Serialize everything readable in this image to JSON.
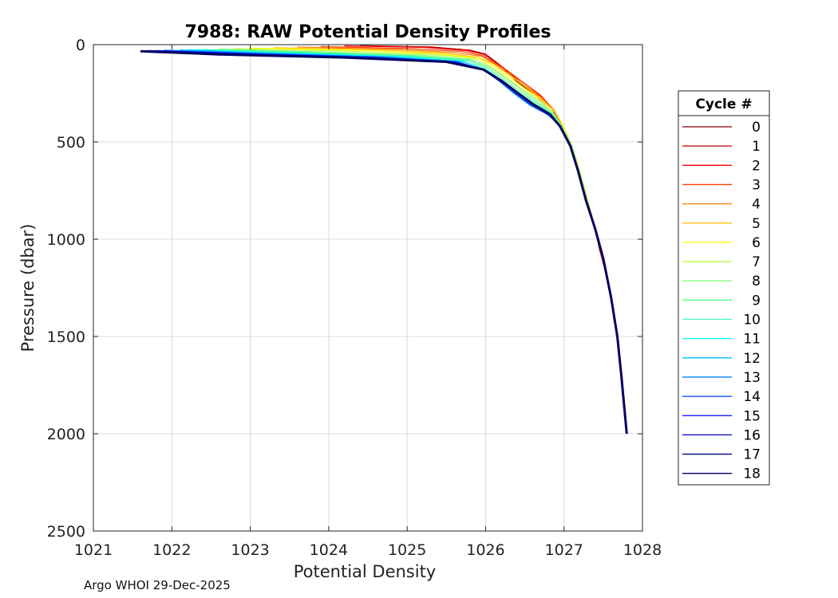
{
  "chart_data": {
    "type": "line",
    "title": "7988: RAW Potential Density Profiles",
    "xlabel": "Potential Density",
    "ylabel": "Pressure (dbar)",
    "xlim": [
      1021,
      1028
    ],
    "ylim": [
      0,
      2500
    ],
    "y_reversed": true,
    "xticks": [
      "1021",
      "1022",
      "1023",
      "1024",
      "1025",
      "1026",
      "1027",
      "1028"
    ],
    "yticks": [
      "0",
      "500",
      "1000",
      "1500",
      "2000",
      "2500"
    ],
    "grid": true,
    "legend": {
      "title": "Cycle #",
      "placement": "right"
    },
    "series": [
      {
        "name": "0",
        "color": "#800000",
        "x": [
          1024.4,
          1025.3,
          1025.7,
          1025.95,
          1026.1,
          1026.25,
          1026.4,
          1026.6,
          1026.85,
          1026.95,
          1027.1,
          1027.2,
          1027.3,
          1027.4,
          1027.5,
          1027.6,
          1027.68,
          1027.73,
          1027.8
        ],
        "y": [
          5,
          12,
          25,
          45,
          80,
          130,
          190,
          250,
          330,
          400,
          520,
          650,
          800,
          950,
          1100,
          1300,
          1500,
          1700,
          2000
        ]
      },
      {
        "name": "1",
        "color": "#c00000",
        "x": [
          1024.6,
          1025.4,
          1025.8,
          1026.0,
          1026.12,
          1026.28,
          1026.45,
          1026.62,
          1026.85,
          1026.98,
          1027.1,
          1027.2,
          1027.3,
          1027.4,
          1027.5,
          1027.6,
          1027.68,
          1027.73,
          1027.8
        ],
        "y": [
          8,
          15,
          28,
          48,
          85,
          135,
          195,
          255,
          335,
          410,
          520,
          650,
          800,
          950,
          1100,
          1300,
          1500,
          1700,
          2000
        ]
      },
      {
        "name": "2",
        "color": "#ff0000",
        "x": [
          1024.2,
          1025.2,
          1025.75,
          1025.98,
          1026.1,
          1026.3,
          1026.5,
          1026.7,
          1026.88,
          1026.98,
          1027.1,
          1027.2,
          1027.3,
          1027.4,
          1027.45,
          1027.55,
          1027.66,
          1027.73,
          1027.8
        ],
        "y": [
          6,
          14,
          30,
          50,
          85,
          140,
          200,
          260,
          340,
          410,
          520,
          650,
          800,
          950,
          1050,
          1200,
          1450,
          1700,
          2000
        ]
      },
      {
        "name": "3",
        "color": "#ff4000",
        "x": [
          1023.9,
          1025.0,
          1025.7,
          1025.95,
          1026.1,
          1026.3,
          1026.5,
          1026.7,
          1026.88,
          1026.98,
          1027.1,
          1027.2,
          1027.3,
          1027.4,
          1027.45,
          1027.55,
          1027.66,
          1027.73,
          1027.8
        ],
        "y": [
          10,
          20,
          35,
          55,
          90,
          140,
          200,
          265,
          340,
          410,
          520,
          650,
          800,
          950,
          1050,
          1200,
          1450,
          1700,
          2000
        ]
      },
      {
        "name": "4",
        "color": "#ff8000",
        "x": [
          1023.6,
          1024.9,
          1025.6,
          1025.95,
          1026.1,
          1026.3,
          1026.5,
          1026.7,
          1026.88,
          1026.98,
          1027.1,
          1027.2,
          1027.3,
          1027.4,
          1027.5,
          1027.6,
          1027.68,
          1027.73,
          1027.8
        ],
        "y": [
          12,
          25,
          40,
          60,
          95,
          150,
          210,
          270,
          340,
          410,
          520,
          650,
          800,
          950,
          1100,
          1300,
          1500,
          1700,
          2000
        ]
      },
      {
        "name": "5",
        "color": "#ffbf00",
        "x": [
          1023.3,
          1024.7,
          1025.5,
          1025.9,
          1026.1,
          1026.3,
          1026.5,
          1026.7,
          1026.88,
          1026.98,
          1027.1,
          1027.2,
          1027.3,
          1027.4,
          1027.5,
          1027.6,
          1027.68,
          1027.73,
          1027.8
        ],
        "y": [
          15,
          28,
          45,
          65,
          100,
          155,
          215,
          275,
          345,
          410,
          520,
          650,
          800,
          950,
          1100,
          1300,
          1500,
          1700,
          2000
        ]
      },
      {
        "name": "6",
        "color": "#ffff00",
        "x": [
          1023.0,
          1024.5,
          1025.4,
          1025.9,
          1026.08,
          1026.28,
          1026.48,
          1026.7,
          1026.88,
          1026.98,
          1027.1,
          1027.2,
          1027.3,
          1027.4,
          1027.5,
          1027.6,
          1027.68,
          1027.73,
          1027.8
        ],
        "y": [
          18,
          30,
          48,
          68,
          105,
          160,
          220,
          280,
          345,
          410,
          520,
          650,
          800,
          950,
          1100,
          1300,
          1500,
          1700,
          2000
        ]
      },
      {
        "name": "7",
        "color": "#bfff40",
        "x": [
          1022.8,
          1024.3,
          1025.3,
          1025.85,
          1026.05,
          1026.25,
          1026.45,
          1026.68,
          1026.86,
          1026.97,
          1027.1,
          1027.2,
          1027.3,
          1027.4,
          1027.5,
          1027.6,
          1027.68,
          1027.73,
          1027.8
        ],
        "y": [
          20,
          35,
          50,
          70,
          110,
          165,
          225,
          285,
          350,
          415,
          520,
          650,
          800,
          950,
          1100,
          1300,
          1500,
          1700,
          2000
        ]
      },
      {
        "name": "8",
        "color": "#80ff80",
        "x": [
          1022.6,
          1024.0,
          1025.2,
          1025.8,
          1026.05,
          1026.25,
          1026.45,
          1026.66,
          1026.86,
          1026.97,
          1027.1,
          1027.18,
          1027.28,
          1027.4,
          1027.5,
          1027.6,
          1027.68,
          1027.73,
          1027.8
        ],
        "y": [
          22,
          38,
          55,
          75,
          115,
          170,
          230,
          290,
          350,
          415,
          520,
          650,
          800,
          950,
          1100,
          1300,
          1500,
          1700,
          2000
        ]
      },
      {
        "name": "9",
        "color": "#40ff80",
        "x": [
          1022.4,
          1023.8,
          1025.1,
          1025.8,
          1026.02,
          1026.22,
          1026.42,
          1026.64,
          1026.85,
          1026.96,
          1027.08,
          1027.18,
          1027.28,
          1027.4,
          1027.5,
          1027.6,
          1027.68,
          1027.73,
          1027.8
        ],
        "y": [
          25,
          40,
          58,
          80,
          120,
          175,
          235,
          295,
          355,
          420,
          520,
          650,
          800,
          950,
          1100,
          1300,
          1500,
          1700,
          2000
        ]
      },
      {
        "name": "10",
        "color": "#40ffbf",
        "x": [
          1022.3,
          1023.6,
          1025.0,
          1025.75,
          1026.0,
          1026.2,
          1026.4,
          1026.62,
          1026.84,
          1026.96,
          1027.08,
          1027.18,
          1027.28,
          1027.4,
          1027.5,
          1027.6,
          1027.68,
          1027.73,
          1027.8
        ],
        "y": [
          25,
          42,
          60,
          82,
          125,
          180,
          240,
          300,
          355,
          420,
          520,
          650,
          800,
          950,
          1100,
          1300,
          1500,
          1700,
          2000
        ]
      },
      {
        "name": "11",
        "color": "#00ffff",
        "x": [
          1022.2,
          1023.5,
          1024.9,
          1025.7,
          1026.0,
          1026.2,
          1026.38,
          1026.6,
          1026.83,
          1026.95,
          1027.08,
          1027.18,
          1027.28,
          1027.4,
          1027.5,
          1027.6,
          1027.68,
          1027.73,
          1027.8
        ],
        "y": [
          26,
          44,
          62,
          85,
          130,
          185,
          245,
          305,
          360,
          420,
          520,
          650,
          800,
          950,
          1100,
          1300,
          1500,
          1700,
          2000
        ]
      },
      {
        "name": "12",
        "color": "#00bfff",
        "x": [
          1022.1,
          1023.4,
          1024.8,
          1025.7,
          1026.0,
          1026.18,
          1026.36,
          1026.58,
          1026.82,
          1026.95,
          1027.08,
          1027.18,
          1027.28,
          1027.4,
          1027.5,
          1027.6,
          1027.68,
          1027.73,
          1027.8
        ],
        "y": [
          27,
          45,
          63,
          86,
          130,
          188,
          248,
          308,
          360,
          420,
          520,
          650,
          800,
          950,
          1100,
          1300,
          1500,
          1700,
          2000
        ]
      },
      {
        "name": "13",
        "color": "#0080ff",
        "x": [
          1021.9,
          1023.2,
          1024.7,
          1025.65,
          1025.98,
          1026.18,
          1026.36,
          1026.56,
          1026.8,
          1026.95,
          1027.08,
          1027.18,
          1027.28,
          1027.4,
          1027.5,
          1027.6,
          1027.68,
          1027.73,
          1027.8
        ],
        "y": [
          28,
          46,
          64,
          88,
          132,
          190,
          250,
          310,
          362,
          420,
          520,
          650,
          800,
          950,
          1100,
          1300,
          1500,
          1700,
          2000
        ]
      },
      {
        "name": "14",
        "color": "#0040ff",
        "x": [
          1021.8,
          1023.0,
          1024.6,
          1025.6,
          1025.98,
          1026.18,
          1026.38,
          1026.58,
          1026.8,
          1026.95,
          1027.08,
          1027.18,
          1027.28,
          1027.4,
          1027.5,
          1027.6,
          1027.68,
          1027.73,
          1027.8
        ],
        "y": [
          30,
          46,
          65,
          88,
          130,
          188,
          250,
          310,
          360,
          420,
          520,
          650,
          800,
          950,
          1100,
          1300,
          1500,
          1700,
          2000
        ]
      },
      {
        "name": "15",
        "color": "#0000ff",
        "x": [
          1021.7,
          1022.9,
          1024.5,
          1025.6,
          1025.98,
          1026.2,
          1026.4,
          1026.6,
          1026.82,
          1026.95,
          1027.08,
          1027.18,
          1027.28,
          1027.4,
          1027.5,
          1027.6,
          1027.68,
          1027.73,
          1027.8
        ],
        "y": [
          30,
          47,
          65,
          88,
          128,
          185,
          245,
          305,
          358,
          420,
          520,
          650,
          800,
          950,
          1100,
          1300,
          1500,
          1700,
          2000
        ]
      },
      {
        "name": "16",
        "color": "#0000bf",
        "x": [
          1021.65,
          1022.8,
          1024.4,
          1025.55,
          1025.98,
          1026.2,
          1026.4,
          1026.6,
          1026.82,
          1026.95,
          1027.08,
          1027.18,
          1027.28,
          1027.4,
          1027.5,
          1027.6,
          1027.68,
          1027.73,
          1027.8
        ],
        "y": [
          32,
          48,
          66,
          88,
          128,
          185,
          245,
          305,
          358,
          420,
          520,
          650,
          800,
          950,
          1100,
          1300,
          1500,
          1700,
          2000
        ]
      },
      {
        "name": "17",
        "color": "#000080",
        "x": [
          1021.62,
          1022.7,
          1024.3,
          1025.5,
          1025.97,
          1026.2,
          1026.4,
          1026.6,
          1026.82,
          1026.95,
          1027.08,
          1027.18,
          1027.28,
          1027.4,
          1027.5,
          1027.6,
          1027.68,
          1027.73,
          1027.8
        ],
        "y": [
          33,
          49,
          66,
          88,
          128,
          185,
          245,
          305,
          358,
          420,
          520,
          650,
          800,
          950,
          1100,
          1300,
          1500,
          1700,
          2000
        ]
      },
      {
        "name": "18",
        "color": "#000060",
        "x": [
          1021.6,
          1022.6,
          1024.2,
          1025.5,
          1025.97,
          1026.2,
          1026.4,
          1026.6,
          1026.82,
          1026.95,
          1027.08,
          1027.18,
          1027.28,
          1027.4,
          1027.5,
          1027.6,
          1027.68,
          1027.73,
          1027.8
        ],
        "y": [
          34,
          50,
          66,
          88,
          128,
          185,
          245,
          305,
          358,
          420,
          520,
          650,
          800,
          950,
          1100,
          1300,
          1500,
          1700,
          2000
        ]
      }
    ]
  },
  "footer": {
    "text": "Argo WHOI 29-Dec-2025"
  }
}
